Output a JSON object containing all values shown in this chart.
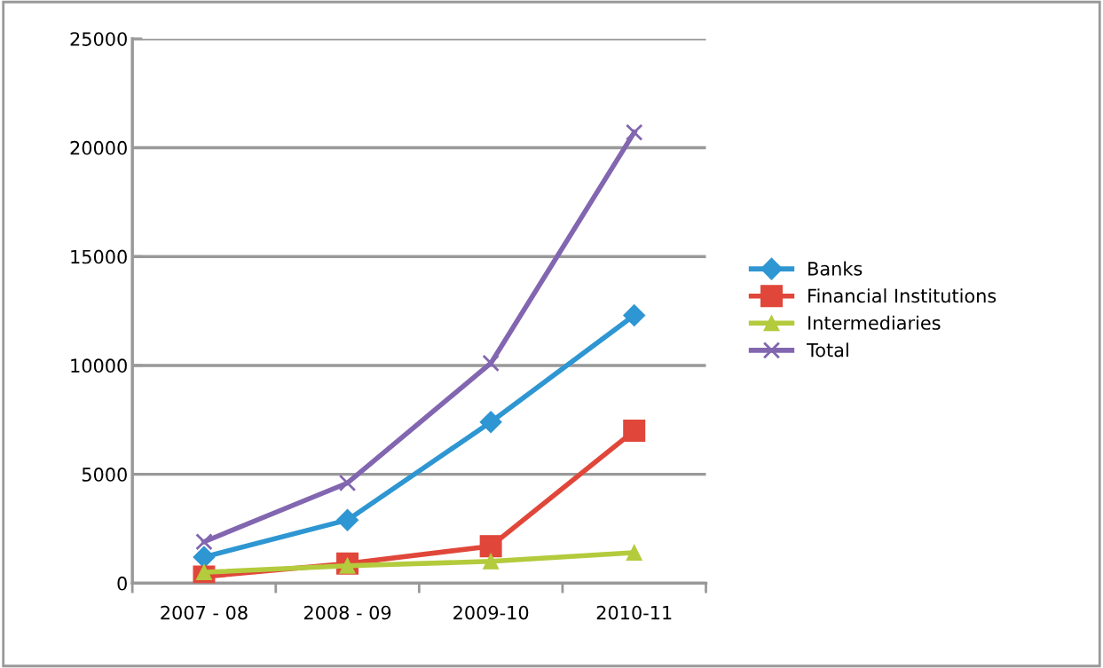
{
  "chart_data": {
    "type": "line",
    "categories": [
      "2007 - 08",
      "2008 - 09",
      "2009-10",
      "2010-11"
    ],
    "series": [
      {
        "name": "Banks",
        "color": "#2e96d2",
        "marker": "diamond",
        "values": [
          1200,
          2900,
          7400,
          12300
        ]
      },
      {
        "name": "Financial Institutions",
        "color": "#e0473a",
        "marker": "square",
        "values": [
          300,
          900,
          1700,
          7000
        ]
      },
      {
        "name": "Intermediaries",
        "color": "#b3cb3c",
        "marker": "triangle",
        "values": [
          500,
          800,
          1000,
          1400
        ]
      },
      {
        "name": "Total",
        "color": "#8266b0",
        "marker": "cross",
        "values": [
          1900,
          4600,
          10100,
          20700
        ]
      }
    ],
    "ylim": [
      0,
      25000
    ],
    "yticks": [
      0,
      5000,
      10000,
      15000,
      20000,
      25000
    ],
    "grid": "y",
    "legend": "right",
    "line_style": "solid"
  }
}
